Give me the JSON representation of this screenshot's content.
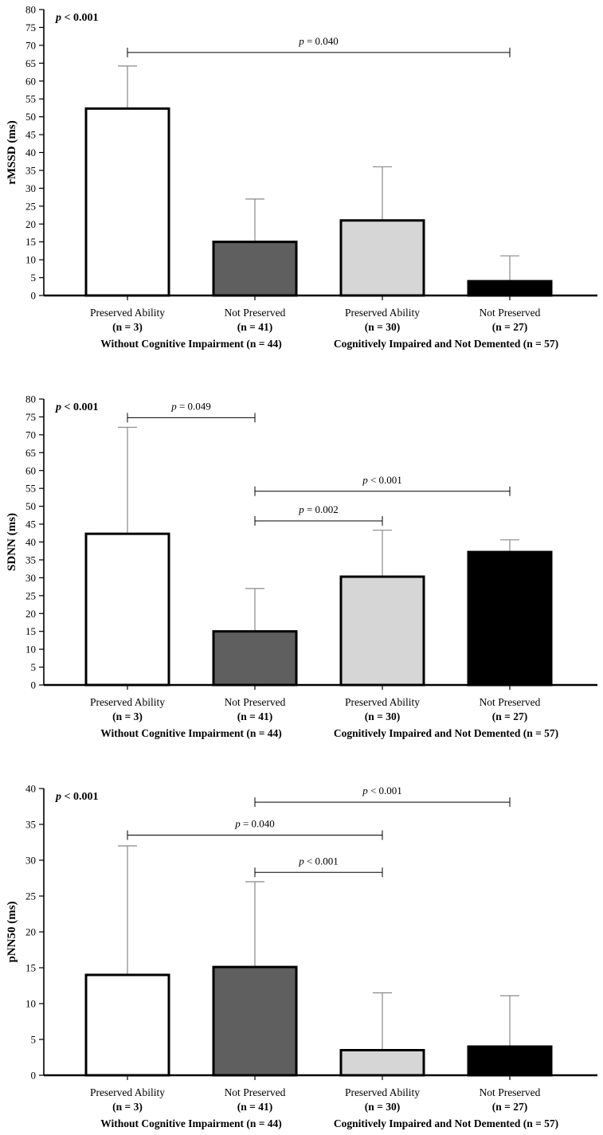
{
  "chart_data": [
    {
      "type": "bar",
      "ylabel": "rMSSD (ms)",
      "ylim": [
        0,
        80
      ],
      "ytick_step": 5,
      "overall_p": "p < 0.001",
      "categories": [
        "Preserved Ability",
        "Not Preserved",
        "Preserved Ability",
        "Not Preserved"
      ],
      "n_labels": [
        "(n = 3)",
        "(n = 41)",
        "(n = 30)",
        "(n = 27)"
      ],
      "groups": [
        "Without Cognitive Impairment (n = 44)",
        "Cognitively Impaired and Not Demented (n = 57)"
      ],
      "values": [
        52.3,
        15,
        21,
        4
      ],
      "errors": [
        64.2,
        27,
        36,
        11.1
      ],
      "fills": [
        "#ffffff",
        "#5f5f5f",
        "#d6d6d6",
        "#000000"
      ],
      "brackets": [
        {
          "from": 0,
          "to": 3,
          "y": 68,
          "label": "= 0.040"
        }
      ]
    },
    {
      "type": "bar",
      "ylabel": "SDNN (ms)",
      "ylim": [
        0,
        80
      ],
      "ytick_step": 5,
      "overall_p": "p < 0.001",
      "categories": [
        "Preserved Ability",
        "Not Preserved",
        "Preserved Ability",
        "Not Preserved"
      ],
      "n_labels": [
        "(n = 3)",
        "(n = 41)",
        "(n = 30)",
        "(n = 27)"
      ],
      "groups": [
        "Without Cognitive Impairment (n = 44)",
        "Cognitively Impaired and Not Demented (n = 57)"
      ],
      "values": [
        42.3,
        15,
        30.3,
        37.2
      ],
      "errors": [
        72.1,
        27,
        43.3,
        40.6
      ],
      "fills": [
        "#ffffff",
        "#5f5f5f",
        "#d6d6d6",
        "#000000"
      ],
      "brackets": [
        {
          "from": 0,
          "to": 1,
          "y": 74.8,
          "label": "= 0.049"
        },
        {
          "from": 1,
          "to": 3,
          "y": 54.2,
          "label": "< 0.001"
        },
        {
          "from": 1,
          "to": 2,
          "y": 45.9,
          "label": "= 0.002"
        }
      ]
    },
    {
      "type": "bar",
      "ylabel": "pNN50 (ms)",
      "ylim": [
        0,
        40
      ],
      "ytick_step": 5,
      "overall_p": "p < 0.001",
      "categories": [
        "Preserved Ability",
        "Not Preserved",
        "Preserved Ability",
        "Not Preserved"
      ],
      "n_labels": [
        "(n = 3)",
        "(n = 41)",
        "(n = 30)",
        "(n = 27)"
      ],
      "groups": [
        "Without Cognitive Impairment (n = 44)",
        "Cognitively Impaired and Not Demented (n = 57)"
      ],
      "values": [
        14,
        15.1,
        3.5,
        4
      ],
      "errors": [
        32,
        27,
        11.5,
        11.1
      ],
      "fills": [
        "#ffffff",
        "#5f5f5f",
        "#d6d6d6",
        "#000000"
      ],
      "brackets": [
        {
          "from": 1,
          "to": 3,
          "y": 38.1,
          "label": "< 0.001"
        },
        {
          "from": 0,
          "to": 2,
          "y": 33.5,
          "label": "= 0.040"
        },
        {
          "from": 1,
          "to": 2,
          "y": 28.3,
          "label": "< 0.001"
        }
      ]
    }
  ]
}
